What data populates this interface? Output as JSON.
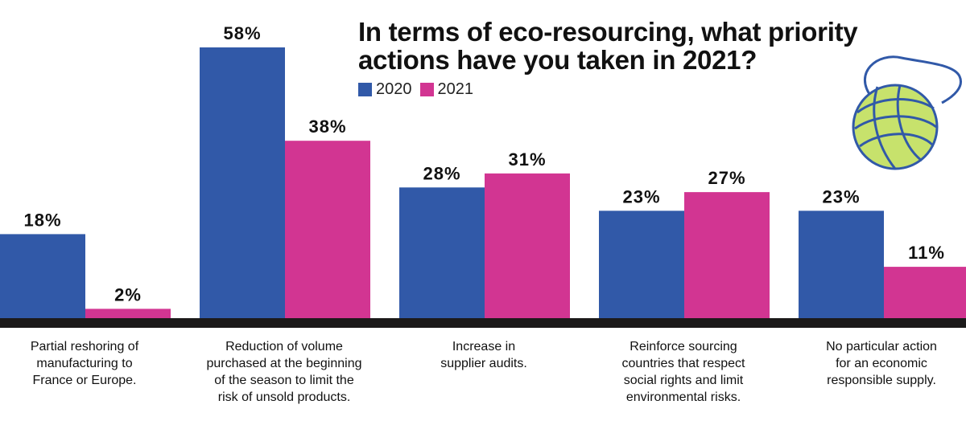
{
  "title_lines": [
    "In terms of eco-resourcing, what priority",
    "actions have you taken in 2021?"
  ],
  "colors": {
    "2020": "#3159a8",
    "2021": "#d23592",
    "baseline": "#1c1a1a",
    "yarn_fill": "#c7e26c",
    "yarn_line": "#3159a8"
  },
  "legend": [
    {
      "label": "2020",
      "color": "#3159a8"
    },
    {
      "label": "2021",
      "color": "#d23592"
    }
  ],
  "categories": [
    {
      "lines": [
        "Partial reshoring of",
        "manufacturing to",
        "France or Europe."
      ]
    },
    {
      "lines": [
        "Reduction of volume",
        "purchased at the beginning",
        "of the season to limit the",
        "risk of unsold products."
      ]
    },
    {
      "lines": [
        "Increase in",
        "supplier audits."
      ]
    },
    {
      "lines": [
        "Reinforce sourcing",
        "countries that respect",
        "social rights and limit",
        "environmental risks."
      ]
    },
    {
      "lines": [
        "No particular action",
        "for an economic",
        "responsible supply."
      ]
    }
  ],
  "decoration": {
    "icon": "yarn-ball-icon"
  },
  "chart_data": {
    "type": "bar",
    "title": "In terms of eco-resourcing, what priority actions have you taken in 2021?",
    "categories": [
      "Partial reshoring of manufacturing to France or Europe.",
      "Reduction of volume purchased at the beginning of the season to limit the risk of unsold products.",
      "Increase in supplier audits.",
      "Reinforce sourcing countries that respect social rights and limit environmental risks.",
      "No particular action for an economic responsible supply."
    ],
    "series": [
      {
        "name": "2020",
        "values": [
          18,
          58,
          28,
          23,
          23
        ],
        "labels": [
          "18%",
          "58%",
          "28%",
          "23%",
          "23%"
        ]
      },
      {
        "name": "2021",
        "values": [
          2,
          38,
          31,
          27,
          11
        ],
        "labels": [
          "2%",
          "38%",
          "31%",
          "27%",
          "11%"
        ]
      }
    ],
    "unit": "%",
    "grid": false,
    "legend_position": "top"
  }
}
